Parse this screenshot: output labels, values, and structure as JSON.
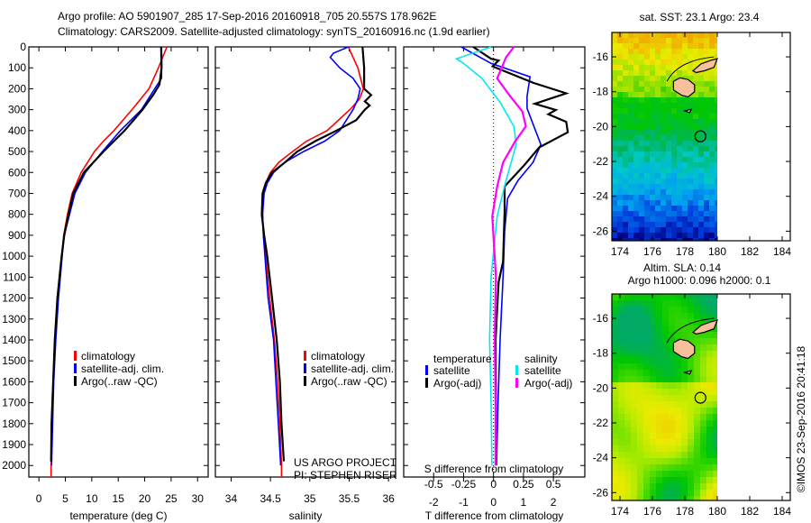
{
  "header": {
    "line1": "Argo profile: AO 5901907_285 17-Sep-2016 20160918_705 20.557S 178.962E",
    "line2": "Climatology: CARS2009. Satellite-adjusted climatology: synTS_20160916.nc (1.9d earlier)"
  },
  "credits": {
    "project": "US ARGO PROJECT",
    "pi": "PI: STEPHEN RISER",
    "copyright": "©IMOS 23-Sep-2016 20:41:18"
  },
  "colors": {
    "climatology": "#ff0000",
    "satellite": "#0000ff",
    "argo": "#000000",
    "s_satellite": "#00e8f0",
    "s_argo": "#ff00ff"
  },
  "chart_data": [
    {
      "id": "temperature",
      "type": "line",
      "xlabel": "temperature (deg C)",
      "xlim": [
        -1.9,
        32
      ],
      "ylim": [
        2055,
        0
      ],
      "xticks": [
        0,
        5,
        10,
        15,
        20,
        25,
        30
      ],
      "yticks": [
        0,
        100,
        200,
        300,
        400,
        500,
        600,
        700,
        800,
        900,
        1000,
        1100,
        1200,
        1300,
        1400,
        1500,
        1600,
        1700,
        1800,
        1900,
        2000
      ],
      "legend": [
        "climatology",
        "satellite-adj. clim.",
        "Argo(..raw -QC)"
      ],
      "series": [
        {
          "name": "climatology",
          "color": "#ff0000",
          "depth": [
            0,
            100,
            200,
            300,
            400,
            450,
            500,
            600,
            700,
            800,
            900,
            1000,
            1200,
            1400,
            1600,
            1800,
            2000,
            2055
          ],
          "values": [
            24.2,
            22.6,
            20.8,
            17.6,
            14.2,
            12.2,
            10.5,
            8.0,
            6.3,
            5.4,
            4.7,
            4.3,
            3.5,
            3.0,
            2.7,
            2.4,
            2.3,
            2.3
          ]
        },
        {
          "name": "satellite-adj. clim.",
          "color": "#0000ff",
          "depth": [
            0,
            150,
            200,
            300,
            400,
            500,
            600,
            700,
            800,
            900,
            1000,
            1200,
            1400,
            1600,
            1800,
            2000
          ],
          "values": [
            23.2,
            23.2,
            21.9,
            19.4,
            15.4,
            12.0,
            8.8,
            6.8,
            5.8,
            4.8,
            4.4,
            3.7,
            3.2,
            2.8,
            2.6,
            2.4
          ]
        },
        {
          "name": "Argo(..raw -QC)",
          "color": "#000000",
          "depth": [
            0,
            100,
            180,
            230,
            300,
            400,
            500,
            600,
            700,
            800,
            900,
            1000,
            1200,
            1400,
            1600,
            1800,
            1980
          ],
          "values": [
            23.1,
            23.2,
            22.8,
            21.6,
            19.6,
            16.2,
            12.2,
            8.5,
            6.5,
            5.6,
            4.8,
            4.3,
            3.5,
            3.0,
            2.7,
            2.4,
            2.3
          ]
        }
      ]
    },
    {
      "id": "salinity",
      "type": "line",
      "xlabel": "salinity",
      "xlim": [
        33.8,
        36.09
      ],
      "ylim": [
        2055,
        0
      ],
      "xticks": [
        34,
        34.5,
        35,
        35.5,
        36
      ],
      "legend": [
        "climatology",
        "satellite-adj. clim.",
        "Argo(..raw -QC)"
      ],
      "series": [
        {
          "name": "climatology",
          "color": "#ff0000",
          "depth": [
            0,
            50,
            100,
            200,
            250,
            300,
            400,
            450,
            500,
            550,
            600,
            650,
            700,
            800,
            900,
            1000,
            1200,
            1400,
            1600,
            1800,
            2000,
            2055
          ],
          "values": [
            35.49,
            35.55,
            35.61,
            35.68,
            35.63,
            35.51,
            35.22,
            34.96,
            34.78,
            34.61,
            34.5,
            34.44,
            34.41,
            34.4,
            34.41,
            34.44,
            34.49,
            34.55,
            34.59,
            34.62,
            34.64,
            34.64
          ]
        },
        {
          "name": "satellite-adj. clim.",
          "color": "#0000ff",
          "depth": [
            0,
            30,
            50,
            100,
            150,
            200,
            250,
            300,
            400,
            450,
            500,
            550,
            600,
            650,
            700,
            800,
            900,
            1000,
            1200,
            1400,
            1600,
            1800,
            2000
          ],
          "values": [
            35.49,
            35.3,
            35.26,
            35.38,
            35.55,
            35.64,
            35.61,
            35.55,
            35.38,
            35.19,
            34.92,
            34.69,
            34.54,
            34.46,
            34.42,
            34.4,
            34.41,
            34.43,
            34.47,
            34.54,
            34.57,
            34.6,
            34.63
          ]
        },
        {
          "name": "Argo(..raw -QC)",
          "color": "#000000",
          "depth": [
            0,
            100,
            200,
            230,
            260,
            280,
            300,
            350,
            400,
            450,
            500,
            550,
            600,
            650,
            700,
            800,
            900,
            1000,
            1200,
            1400,
            1600,
            1800,
            1980
          ],
          "values": [
            35.67,
            35.69,
            35.69,
            35.78,
            35.7,
            35.76,
            35.7,
            35.59,
            35.34,
            35.07,
            34.84,
            34.69,
            34.52,
            34.44,
            34.4,
            34.39,
            34.42,
            34.46,
            34.52,
            34.58,
            34.62,
            34.64,
            34.67
          ]
        }
      ]
    },
    {
      "id": "difference",
      "type": "line",
      "xlabel": "T difference from climatology",
      "s_label": "S difference from climatology",
      "xlim": [
        -3,
        3.05
      ],
      "ylim": [
        2055,
        0
      ],
      "xticks": [
        -2,
        -1,
        0,
        1,
        2
      ],
      "s_ticks": [
        -0.5,
        -0.25,
        0,
        0.25,
        0.5
      ],
      "s_tick_labels": [
        "-0.5",
        "-0.25",
        "0",
        "0.25",
        "0.5"
      ],
      "s_scale": 0.25,
      "legend": {
        "temperature": "temperature",
        "salinity": "salinity",
        "items": [
          "satellite",
          "Argo(-adj)",
          "satellite",
          "Argo(-adj)"
        ]
      },
      "series": [
        {
          "name": "T satellite",
          "kind": "T",
          "color": "#0000ff",
          "depth": [
            0,
            79,
            143,
            236,
            294,
            466,
            552,
            638,
            724,
            881,
            1097,
            1398,
            1700,
            2000
          ],
          "values": [
            -1.08,
            -0.08,
            1.22,
            1.12,
            1.12,
            1.58,
            1.32,
            0.82,
            0.47,
            0.37,
            0.32,
            0.22,
            0.15,
            0.1
          ]
        },
        {
          "name": "T Argo(-adj)",
          "kind": "T",
          "color": "#000000",
          "depth": [
            0,
            57,
            65,
            93,
            172,
            222,
            272,
            301,
            322,
            358,
            408,
            480,
            566,
            667,
            781,
            1025,
            1125,
            1398,
            1700,
            1980
          ],
          "values": [
            -0.68,
            -0.08,
            0.17,
            -0.03,
            1.33,
            2.43,
            1.38,
            2.08,
            1.83,
            2.43,
            2.48,
            1.53,
            1.02,
            0.37,
            0.37,
            0.32,
            0.17,
            0.07,
            0.08,
            0.08
          ]
        },
        {
          "name": "S satellite",
          "kind": "S",
          "color": "#00e8f0",
          "depth": [
            0,
            57,
            79,
            151,
            265,
            380,
            466,
            638,
            810,
            1097,
            1398,
            1700,
            2000
          ],
          "values": [
            -0.02,
            -0.31,
            -0.25,
            -0.095,
            0.055,
            0.17,
            0.19,
            0.105,
            0.03,
            -0.02,
            -0.033,
            -0.02,
            -0.013
          ]
        },
        {
          "name": "S Argo(-adj)",
          "kind": "S",
          "color": "#ff00ff",
          "depth": [
            0,
            50,
            151,
            236,
            308,
            380,
            452,
            552,
            667,
            810,
            1097,
            1398,
            1700,
            2000
          ],
          "values": [
            0.17,
            0.105,
            0.03,
            0.14,
            0.24,
            0.27,
            0.18,
            0.08,
            0.03,
            -0.01,
            0.02,
            0.01,
            0.017,
            0.017
          ]
        }
      ]
    },
    {
      "id": "sst-map",
      "type": "heatmap",
      "title": "sat. SST: 23.1 Argo: 23.4",
      "xlim": [
        173.5,
        184.5
      ],
      "ylim": [
        -26.55,
        -14.6
      ],
      "xticks": [
        174,
        176,
        178,
        180,
        182,
        184
      ],
      "yticks": [
        -16,
        -18,
        -20,
        -22,
        -24,
        -26
      ],
      "data_lon_max": 180,
      "argo_position": {
        "lon": 178.962,
        "lat": -20.557
      }
    },
    {
      "id": "sla-map",
      "type": "heatmap",
      "title": "Altim. SLA: 0.14",
      "subtitle": "Argo h1000: 0.096 h2000: 0.1",
      "xlim": [
        173.5,
        184.5
      ],
      "ylim": [
        -26.45,
        -14.6
      ],
      "xticks": [
        174,
        176,
        178,
        180,
        182,
        184
      ],
      "yticks": [
        -16,
        -18,
        -20,
        -22,
        -24,
        -26
      ],
      "data_lon_max": 180,
      "argo_position": {
        "lon": 178.962,
        "lat": -20.557
      }
    }
  ]
}
